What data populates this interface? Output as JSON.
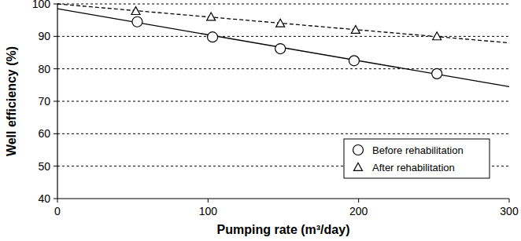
{
  "chart_data": {
    "type": "scatter",
    "x_label": "Pumping rate (m³/day)",
    "y_label": "Well efficiency (%)",
    "xlim": [
      0,
      300
    ],
    "xticks": [
      0,
      100,
      200,
      300
    ],
    "ylim": [
      40,
      100
    ],
    "yticks": [
      40,
      50,
      60,
      70,
      80,
      90,
      100
    ],
    "grid": true,
    "legend": "lower right",
    "series": [
      {
        "name": "Before rehabilitation",
        "color": "#000000",
        "marker": "circle",
        "line_style": "solid",
        "x": [
          53,
          103,
          148,
          197,
          252
        ],
        "values": [
          94.5,
          89.8,
          86.2,
          82.5,
          78.5
        ],
        "trend": {
          "x": [
            0,
            300
          ],
          "values": [
            98.5,
            74.5
          ]
        }
      },
      {
        "name": "After rehabilitation",
        "color": "#000000",
        "marker": "triangle",
        "line_style": "dashed",
        "x": [
          52,
          102,
          148,
          198,
          252
        ],
        "values": [
          97.8,
          96.0,
          94.0,
          92.0,
          90.0
        ],
        "trend": {
          "x": [
            0,
            300
          ],
          "values": [
            100,
            88
          ]
        }
      }
    ]
  }
}
